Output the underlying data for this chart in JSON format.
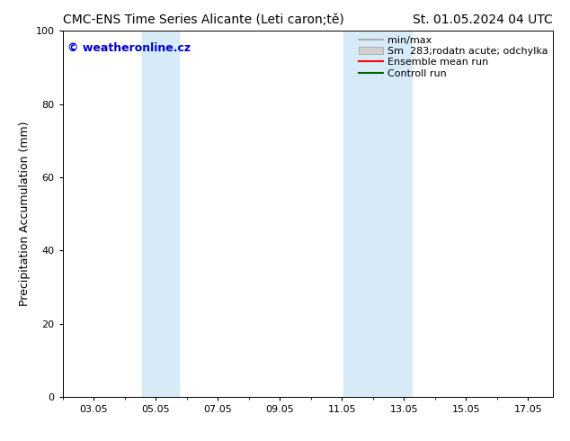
{
  "title_left": "CMC-ENS Time Series Alicante (Leti caron;tě)",
  "title_right": "St. 01.05.2024 04 UTC",
  "ylabel": "Precipitation Accumulation (mm)",
  "ylim": [
    0,
    100
  ],
  "yticks": [
    0,
    20,
    40,
    60,
    80,
    100
  ],
  "xtick_labels": [
    "03.05",
    "05.05",
    "07.05",
    "09.05",
    "11.05",
    "13.05",
    "15.05",
    "17.05"
  ],
  "xtick_positions": [
    3,
    5,
    7,
    9,
    11,
    13,
    15,
    17
  ],
  "xlim": [
    2.0,
    17.8
  ],
  "shaded_regions": [
    {
      "x_start": 4.55,
      "x_end": 5.75,
      "color": "#d6eaf8",
      "alpha": 1.0
    },
    {
      "x_start": 11.05,
      "x_end": 12.05,
      "color": "#d6eaf8",
      "alpha": 1.0
    },
    {
      "x_start": 12.05,
      "x_end": 13.25,
      "color": "#d6eaf8",
      "alpha": 1.0
    }
  ],
  "watermark_text": "© weatheronline.cz",
  "watermark_color": "#0000cc",
  "legend_items": [
    {
      "label": "min/max",
      "type": "line",
      "color": "#aaaaaa"
    },
    {
      "label": "Sm  283;rodatn acute; odchylka",
      "type": "patch",
      "facecolor": "#d0d0d0",
      "edgecolor": "#999999"
    },
    {
      "label": "Ensemble mean run",
      "type": "line",
      "color": "#ff0000"
    },
    {
      "label": "Controll run",
      "type": "line",
      "color": "#006600"
    }
  ],
  "background_color": "#ffffff",
  "font_size_title": 10,
  "font_size_axis": 9,
  "font_size_tick": 8,
  "font_size_legend": 8,
  "font_size_watermark": 9
}
